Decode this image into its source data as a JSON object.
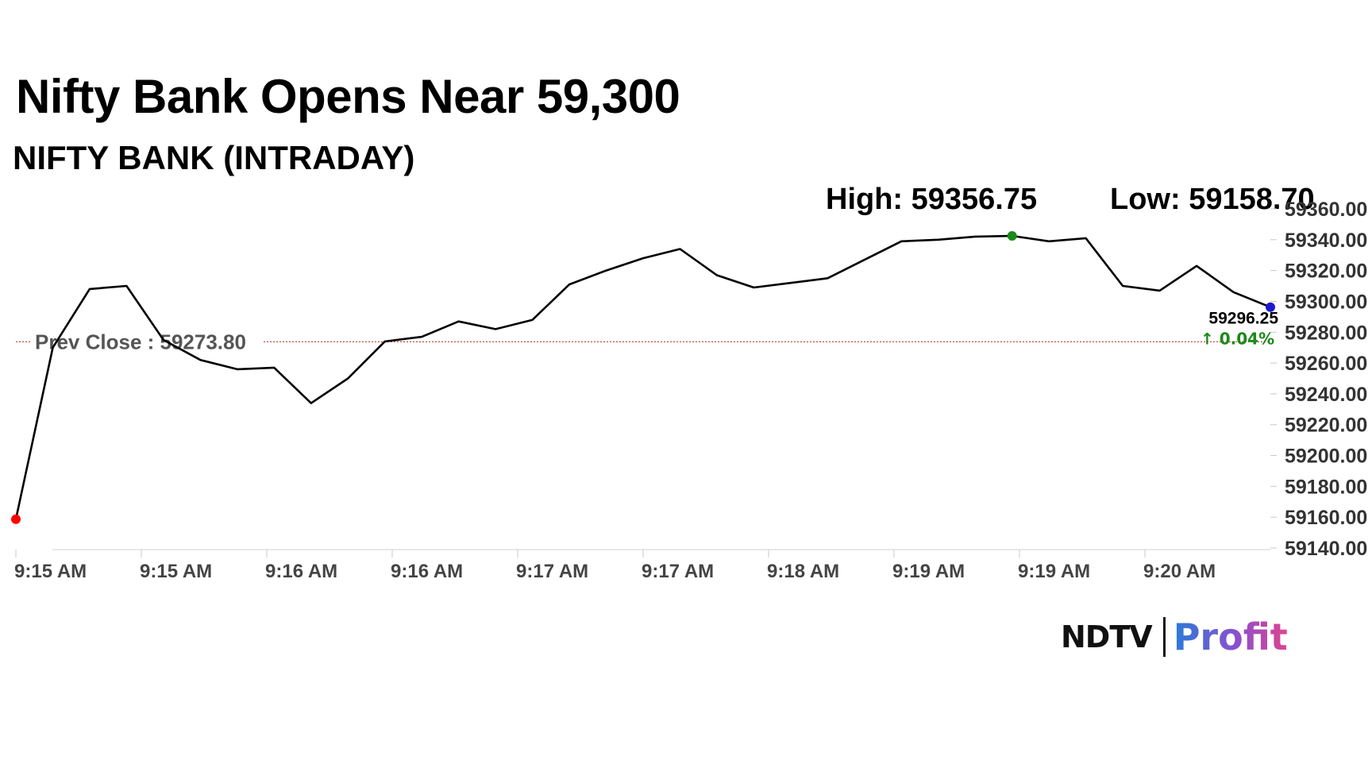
{
  "header": {
    "title": "Nifty Bank Opens Near 59,300",
    "subtitle": "NIFTY BANK (INTRADAY)",
    "high_label": "High: 59356.75",
    "low_label": "Low: 59158.70"
  },
  "brand": {
    "primary": "NDTV",
    "secondary": "Profit"
  },
  "colors": {
    "line": "#000000",
    "prev_close_line": "#c0392b",
    "open_marker": "#ff0000",
    "high_marker": "#1a8a1a",
    "last_marker": "#1a1acc",
    "change_up": "#1a8a1a"
  },
  "chart_data": {
    "type": "line",
    "title": "NIFTY BANK (INTRADAY)",
    "xlabel": "",
    "ylabel": "",
    "ylim": [
      59140,
      59360
    ],
    "yticks": [
      59140,
      59160,
      59180,
      59200,
      59220,
      59240,
      59260,
      59280,
      59300,
      59320,
      59340,
      59360
    ],
    "ytick_labels": [
      "59140.00",
      "59160.00",
      "59180.00",
      "59200.00",
      "59220.00",
      "59240.00",
      "59260.00",
      "59280.00",
      "59300.00",
      "59320.00",
      "59340.00",
      "59360.00"
    ],
    "xtick_labels": [
      "9:15 AM",
      "9:15 AM",
      "9:16 AM",
      "9:16 AM",
      "9:17 AM",
      "9:17 AM",
      "9:18 AM",
      "9:19 AM",
      "9:19 AM",
      "9:20 AM"
    ],
    "grid": false,
    "series": [
      {
        "values": [
          59158.7,
          59270,
          59308,
          59310,
          59275,
          59262,
          59256,
          59257,
          59234,
          59250,
          59274,
          59277,
          59287,
          59282,
          59288,
          59311,
          59320,
          59328,
          59334,
          59317,
          59309,
          59312,
          59315,
          59327,
          59339,
          59340,
          59342,
          59342.5,
          59339,
          59341,
          59310,
          59307,
          59323,
          59306,
          59296.25
        ]
      }
    ],
    "prev_close": 59273.8,
    "prev_close_label": "Prev Close : 59273.80",
    "last_value_label": "59296.25",
    "change_label": "↑ 0.04%",
    "markers": {
      "open_index": 0,
      "high_index": 27,
      "last_index": 34
    }
  }
}
